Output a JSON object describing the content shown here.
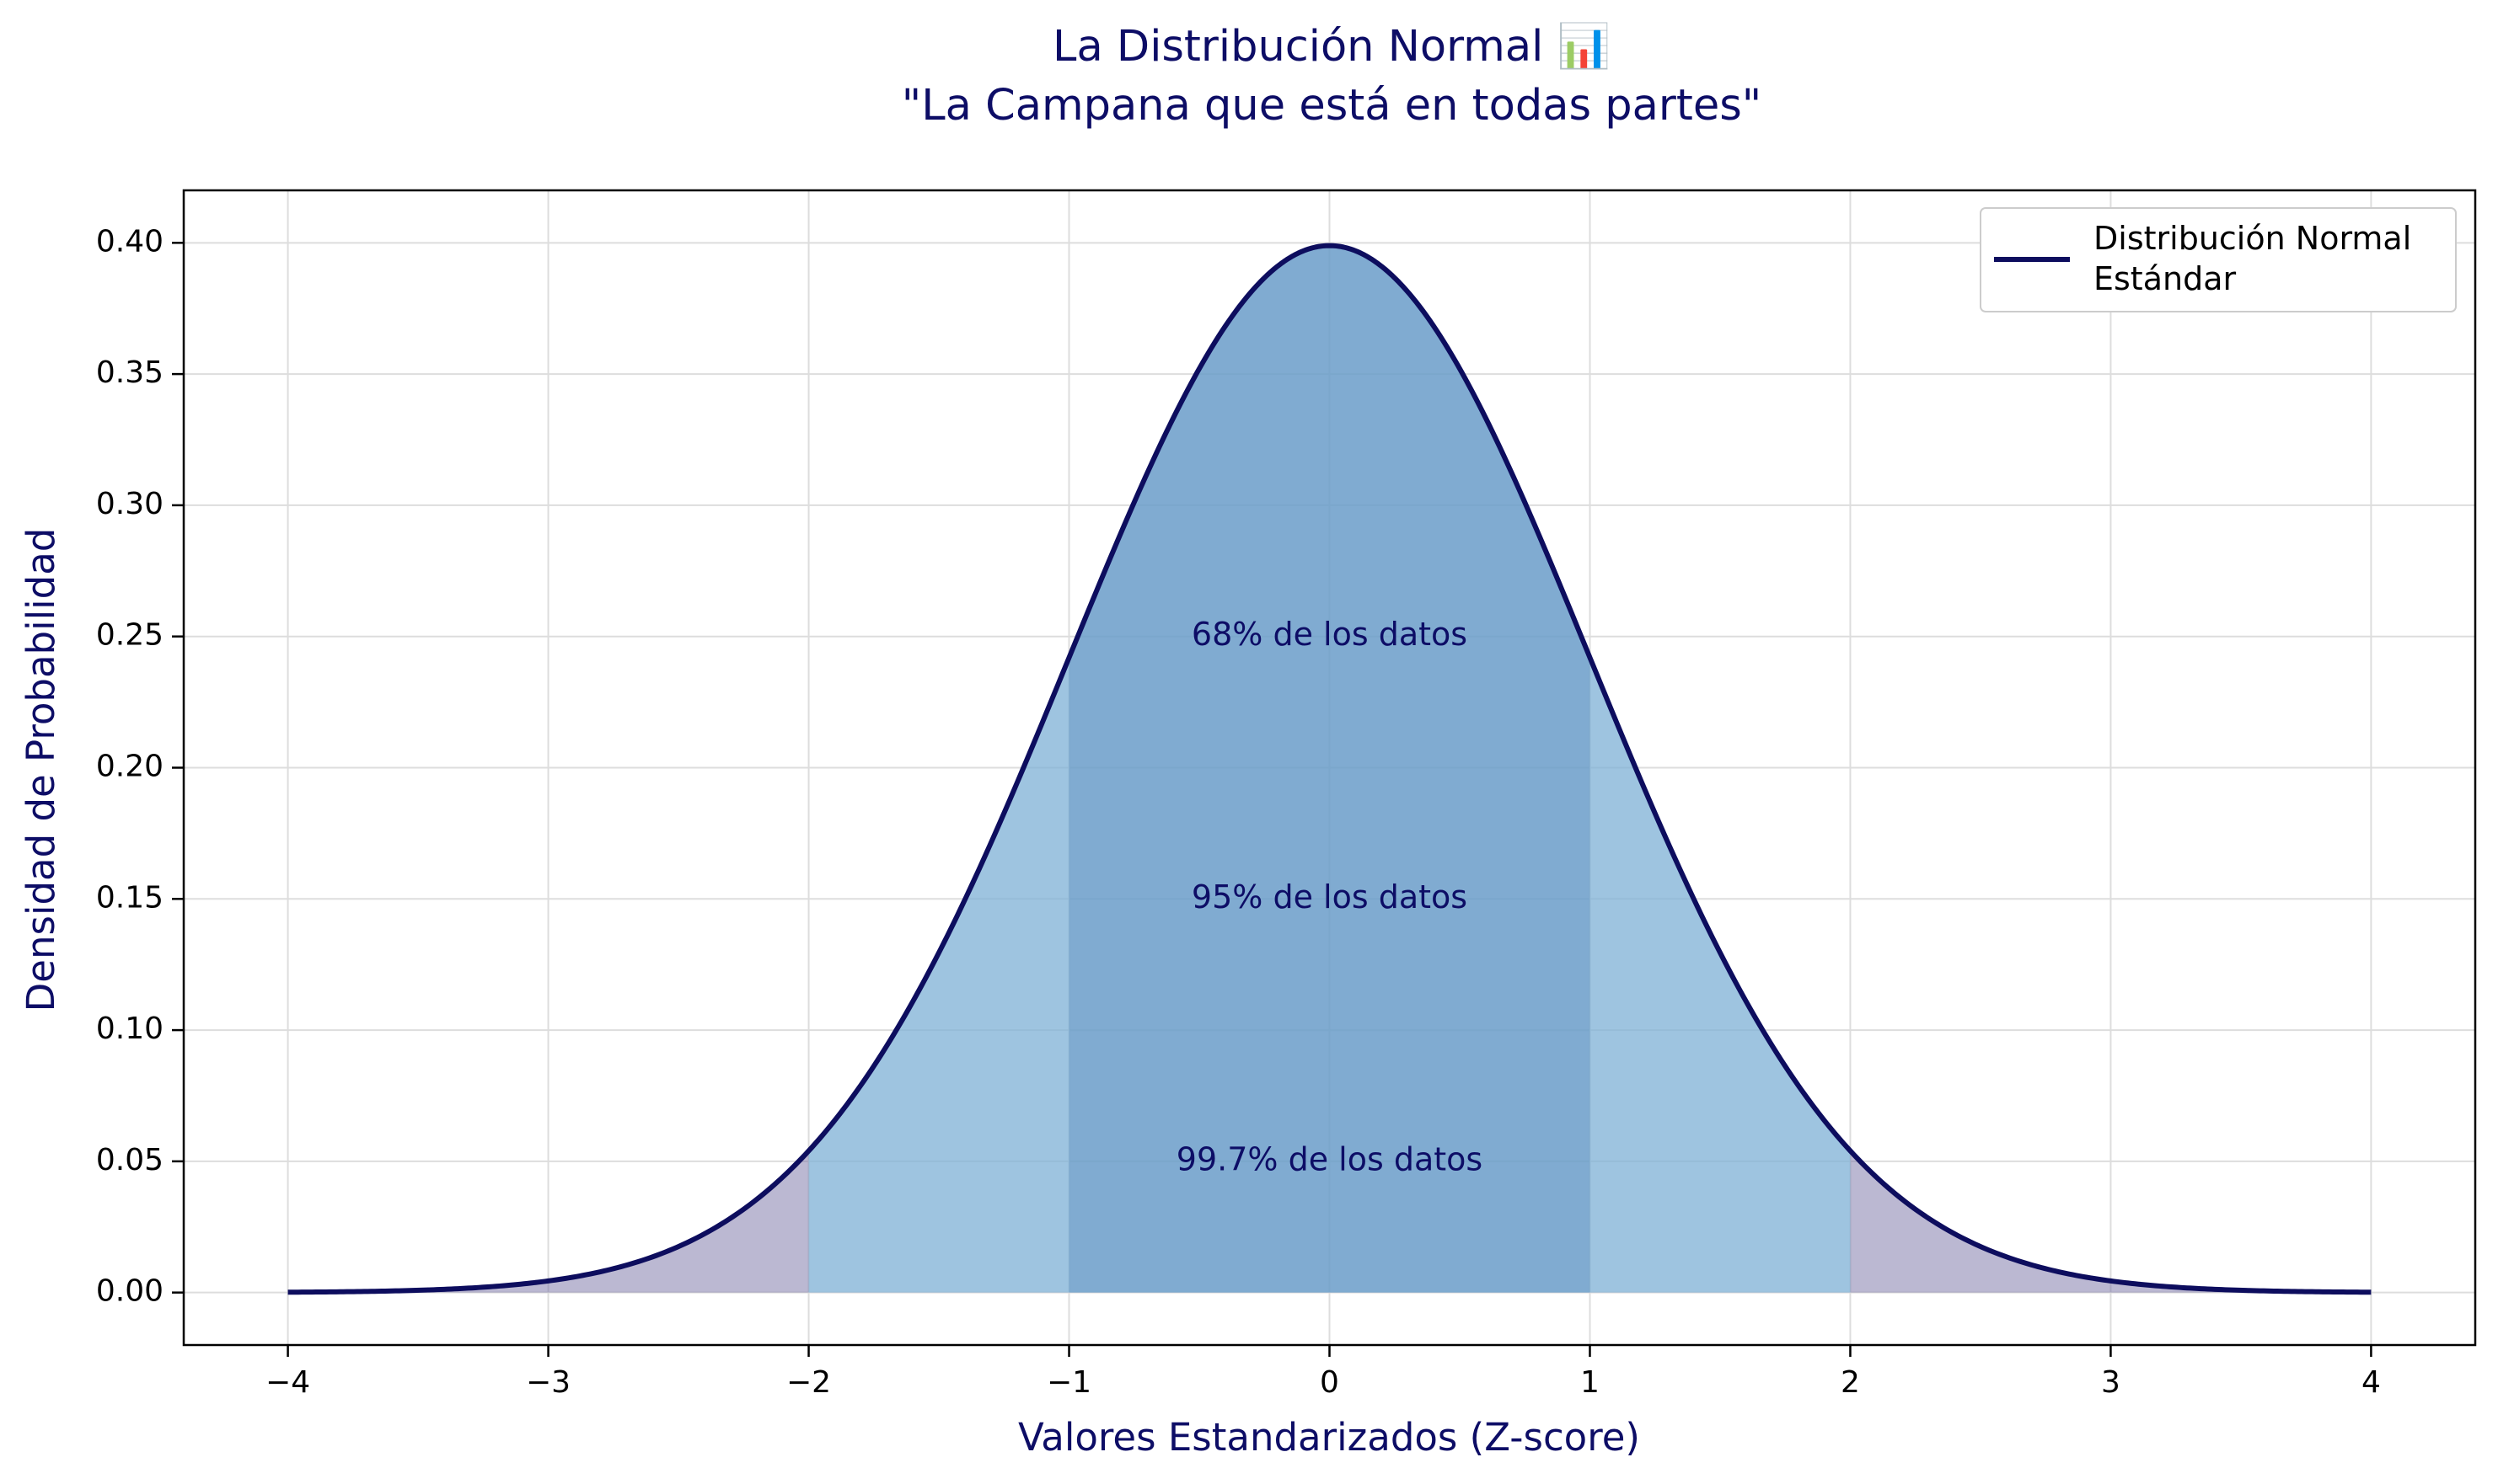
{
  "chart_data": {
    "type": "area",
    "title_line1": "La Distribución Normal 📊",
    "title_line2": "\"La Campana que está en todas partes\"",
    "xlabel": "Valores Estandarizados (Z-score)",
    "ylabel": "Densidad de Probabilidad",
    "xlim": [
      -4.4,
      4.4
    ],
    "ylim": [
      -0.02,
      0.42
    ],
    "x_ticks": [
      -4,
      -3,
      -2,
      -1,
      0,
      1,
      2,
      3,
      4
    ],
    "x_tick_labels": [
      "−4",
      "−3",
      "−2",
      "−1",
      "0",
      "1",
      "2",
      "3",
      "4"
    ],
    "y_ticks": [
      0.0,
      0.05,
      0.1,
      0.15,
      0.2,
      0.25,
      0.3,
      0.35,
      0.4
    ],
    "y_tick_labels": [
      "0.00",
      "0.05",
      "0.10",
      "0.15",
      "0.20",
      "0.25",
      "0.30",
      "0.35",
      "0.40"
    ],
    "grid": true,
    "legend_position": "top-right",
    "series": [
      {
        "name": "Distribución Normal\nEstándar",
        "legend_lines": [
          "Distribución Normal",
          "Estándar"
        ],
        "color": "#0d0d5e",
        "mean": 0,
        "std": 1,
        "x_range": [
          -4,
          4
        ],
        "x": [
          -4,
          -3.5,
          -3,
          -2.5,
          -2,
          -1.5,
          -1,
          -0.5,
          0,
          0.5,
          1,
          1.5,
          2,
          2.5,
          3,
          3.5,
          4
        ],
        "y": [
          0.0001,
          0.0009,
          0.0044,
          0.0175,
          0.054,
          0.1295,
          0.242,
          0.3521,
          0.3989,
          0.3521,
          0.242,
          0.1295,
          0.054,
          0.0175,
          0.0044,
          0.0009,
          0.0001
        ]
      }
    ],
    "shaded_regions": [
      {
        "range": [
          -4,
          4
        ],
        "color": "#706aa0",
        "opacity": 0.48
      },
      {
        "range": [
          -2,
          2
        ],
        "color": "#87ceeb",
        "opacity": 0.55
      },
      {
        "range": [
          -1,
          1
        ],
        "color": "#5b8fbf",
        "opacity": 0.45
      }
    ],
    "annotations": [
      {
        "text": "68% de los datos",
        "x": 0,
        "y": 0.25
      },
      {
        "text": "95% de los datos",
        "x": 0,
        "y": 0.15
      },
      {
        "text": "99.7% de los datos",
        "x": 0,
        "y": 0.05
      }
    ]
  }
}
